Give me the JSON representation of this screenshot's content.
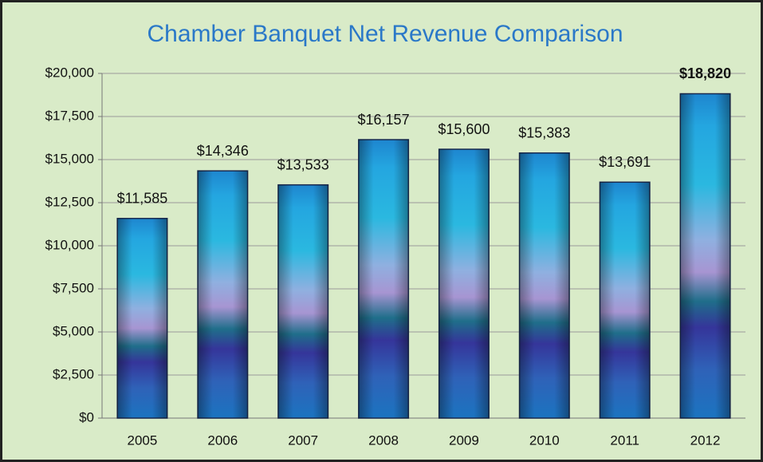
{
  "chart_data": {
    "type": "bar",
    "title": "Chamber Banquet Net Revenue Comparison",
    "categories": [
      "2005",
      "2006",
      "2007",
      "2008",
      "2009",
      "2010",
      "2011",
      "2012"
    ],
    "values": [
      11585,
      14346,
      13533,
      16157,
      15600,
      15383,
      13691,
      18820
    ],
    "value_labels": [
      "$11,585",
      "$14,346",
      "$13,533",
      "$16,157",
      "$15,600",
      "$15,383",
      "$13,691",
      "$18,820"
    ],
    "ylim": [
      0,
      20000
    ],
    "yticks": [
      {
        "value": 0,
        "label": "$0"
      },
      {
        "value": 2500,
        "label": "$2,500"
      },
      {
        "value": 5000,
        "label": "$5,000"
      },
      {
        "value": 7500,
        "label": "$7,500"
      },
      {
        "value": 10000,
        "label": "$10,000"
      },
      {
        "value": 12500,
        "label": "$12,500"
      },
      {
        "value": 15000,
        "label": "$15,000"
      },
      {
        "value": 17500,
        "label": "$17,500"
      },
      {
        "value": 20000,
        "label": "$20,000"
      }
    ],
    "grid": true
  }
}
